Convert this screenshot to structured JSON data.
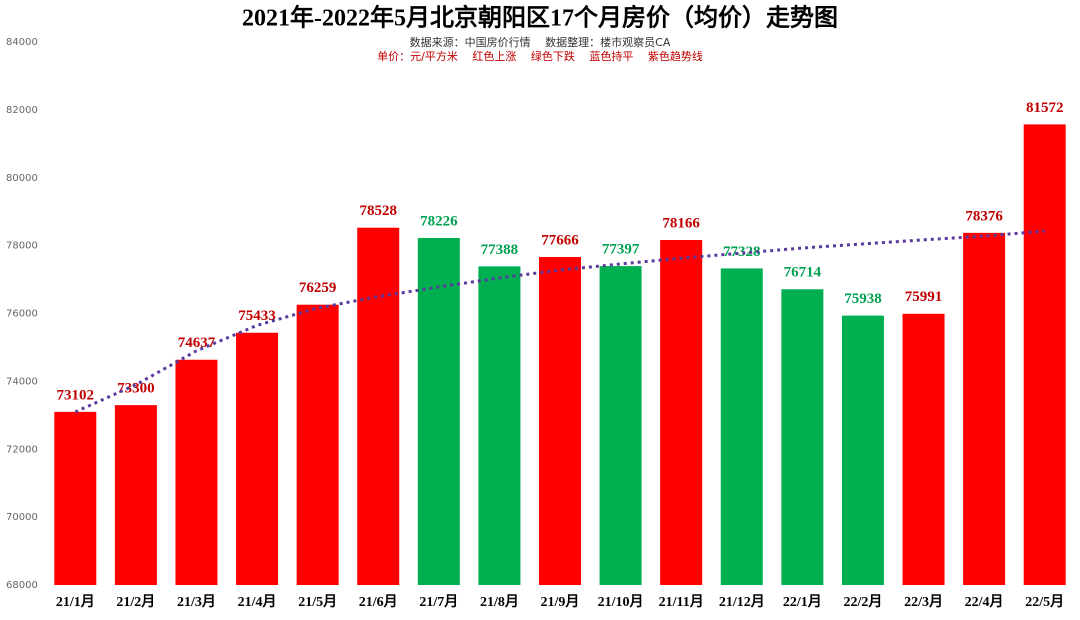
{
  "chart_data": {
    "type": "bar",
    "title": "2021年-2022年5月北京朝阳区17个月房价（均价）走势图",
    "subtitle": "数据来源：中国房价行情　 数据整理：楼市观察员CA",
    "note": "单价：元/平方米　 红色上涨　 绿色下跌　 蓝色持平　 紫色趋势线",
    "categories": [
      "21/1月",
      "21/2月",
      "21/3月",
      "21/4月",
      "21/5月",
      "21/6月",
      "21/7月",
      "21/8月",
      "21/9月",
      "21/10月",
      "21/11月",
      "21/12月",
      "22/1月",
      "22/2月",
      "22/3月",
      "22/4月",
      "22/5月"
    ],
    "values": [
      73102,
      73300,
      74637,
      75433,
      76259,
      78528,
      78226,
      77388,
      77666,
      77397,
      78166,
      77328,
      76714,
      75938,
      75991,
      78376,
      81572
    ],
    "colors": [
      "#ff0000",
      "#ff0000",
      "#ff0000",
      "#ff0000",
      "#ff0000",
      "#ff0000",
      "#00b050",
      "#00b050",
      "#ff0000",
      "#00b050",
      "#ff0000",
      "#00b050",
      "#00b050",
      "#00b050",
      "#ff0000",
      "#ff0000",
      "#ff0000"
    ],
    "label_colors": [
      "#c00000",
      "#c00000",
      "#c00000",
      "#c00000",
      "#c00000",
      "#c00000",
      "#00a050",
      "#00a050",
      "#c00000",
      "#00a050",
      "#c00000",
      "#00a050",
      "#00a050",
      "#00a050",
      "#c00000",
      "#c00000",
      "#c00000"
    ],
    "trend": {
      "color": "#5b3a9e",
      "values": [
        73100,
        73900,
        74900,
        75650,
        76160,
        76500,
        76780,
        77050,
        77280,
        77460,
        77630,
        77780,
        77930,
        78050,
        78170,
        78280,
        78430
      ]
    },
    "ylim": [
      68000,
      84000
    ],
    "yticks": [
      68000,
      70000,
      72000,
      74000,
      76000,
      78000,
      80000,
      82000,
      84000
    ],
    "grid": false
  }
}
